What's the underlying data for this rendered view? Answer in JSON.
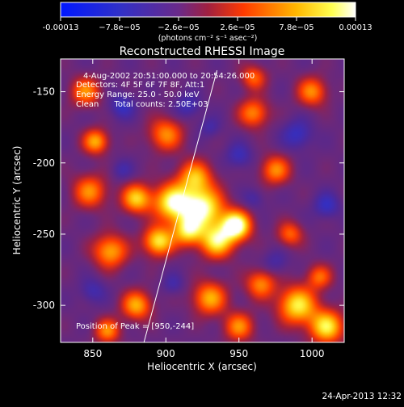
{
  "chart_data": {
    "type": "heatmap",
    "title": "Reconstructed RHESSI Image",
    "xlabel": "Heliocentric X (arcsec)",
    "ylabel": "Heliocentric Y (arcsec)",
    "xlim": [
      828,
      1022
    ],
    "ylim": [
      -326,
      -127
    ],
    "x_ticks": [
      850,
      900,
      950,
      1000
    ],
    "y_ticks": [
      -150,
      -200,
      -250,
      -300
    ],
    "colorbar": {
      "min": -0.00013,
      "max": 0.00013,
      "tick_values": [
        -0.00013,
        -7.8e-05,
        -2.6e-05,
        2.6e-05,
        7.8e-05,
        0.00013
      ],
      "tick_labels": [
        "-0.00013",
        "−7.8e−05",
        "−2.6e−05",
        "2.6e−05",
        "7.8e−05",
        "0.00013"
      ],
      "unit_label": "(photons cm⁻² s⁻¹ asec⁻²)"
    },
    "annotations": [
      "4-Aug-2002 20:51:00.000 to 20:54:26.000",
      "Detectors: 4F 5F 6F 7F 8F, Att:1",
      "Energy Range: 25.0 - 50.0 keV",
      "Clean      Total counts: 2.50E+03"
    ],
    "peak_label": "Position of Peak = [950,-244]",
    "limb_line": [
      [
        885,
        -326
      ],
      [
        935,
        -135
      ]
    ],
    "sources": [
      {
        "x": 905,
        "y": -228,
        "w": 9,
        "a": 1.0
      },
      {
        "x": 925,
        "y": -232,
        "w": 10,
        "a": 1.05
      },
      {
        "x": 948,
        "y": -244,
        "w": 7,
        "a": 1.2
      },
      {
        "x": 935,
        "y": -255,
        "w": 8,
        "a": 0.9
      },
      {
        "x": 915,
        "y": -248,
        "w": 7,
        "a": 0.8
      },
      {
        "x": 895,
        "y": -255,
        "w": 7,
        "a": 0.9
      },
      {
        "x": 920,
        "y": -210,
        "w": 8,
        "a": 0.7
      },
      {
        "x": 880,
        "y": -225,
        "w": 7,
        "a": 0.8
      },
      {
        "x": 862,
        "y": -262,
        "w": 8,
        "a": 0.7
      },
      {
        "x": 848,
        "y": -220,
        "w": 8,
        "a": 0.6
      },
      {
        "x": 845,
        "y": -150,
        "w": 7,
        "a": 0.6
      },
      {
        "x": 852,
        "y": -185,
        "w": 6,
        "a": 0.7
      },
      {
        "x": 900,
        "y": -180,
        "w": 8,
        "a": 0.6
      },
      {
        "x": 960,
        "y": -165,
        "w": 7,
        "a": 0.6
      },
      {
        "x": 1000,
        "y": -150,
        "w": 7,
        "a": 0.6
      },
      {
        "x": 975,
        "y": -205,
        "w": 7,
        "a": 0.6
      },
      {
        "x": 985,
        "y": -250,
        "w": 6,
        "a": 0.5
      },
      {
        "x": 880,
        "y": -300,
        "w": 7,
        "a": 0.7
      },
      {
        "x": 930,
        "y": -295,
        "w": 8,
        "a": 0.7
      },
      {
        "x": 965,
        "y": -285,
        "w": 7,
        "a": 0.6
      },
      {
        "x": 990,
        "y": -300,
        "w": 9,
        "a": 0.9
      },
      {
        "x": 1010,
        "y": -315,
        "w": 8,
        "a": 0.9
      },
      {
        "x": 1005,
        "y": -280,
        "w": 6,
        "a": 0.5
      },
      {
        "x": 950,
        "y": -315,
        "w": 7,
        "a": 0.6
      },
      {
        "x": 860,
        "y": -318,
        "w": 6,
        "a": 0.6
      },
      {
        "x": 960,
        "y": -140,
        "w": 6,
        "a": 0.5
      }
    ],
    "negatives": [
      {
        "x": 870,
        "y": -160,
        "w": 6,
        "a": 0.8
      },
      {
        "x": 915,
        "y": -160,
        "w": 6,
        "a": 0.7
      },
      {
        "x": 950,
        "y": -195,
        "w": 6,
        "a": 0.7
      },
      {
        "x": 990,
        "y": -180,
        "w": 7,
        "a": 0.8
      },
      {
        "x": 1010,
        "y": -230,
        "w": 6,
        "a": 0.8
      },
      {
        "x": 960,
        "y": -225,
        "w": 5,
        "a": 0.5
      },
      {
        "x": 850,
        "y": -290,
        "w": 6,
        "a": 0.6
      },
      {
        "x": 905,
        "y": -285,
        "w": 5,
        "a": 0.5
      },
      {
        "x": 870,
        "y": -205,
        "w": 5,
        "a": 0.5
      },
      {
        "x": 975,
        "y": -270,
        "w": 6,
        "a": 0.5
      },
      {
        "x": 930,
        "y": -175,
        "w": 5,
        "a": 0.5
      }
    ]
  },
  "footer": {
    "timestamp": "24-Apr-2013 12:32"
  }
}
